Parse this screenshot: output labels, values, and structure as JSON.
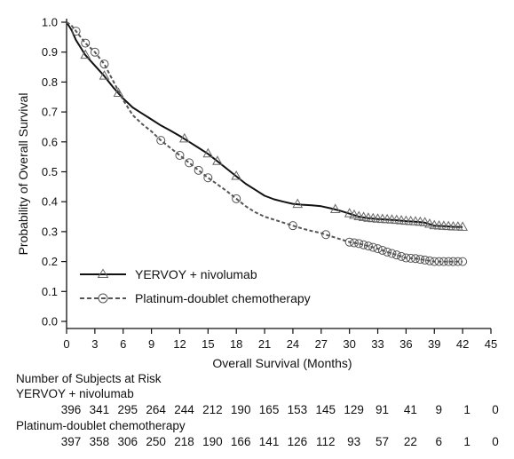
{
  "chart_data": {
    "type": "line",
    "title": "",
    "xlabel": "Overall Survival (Months)",
    "ylabel": "Probability of Overall Survival",
    "xlim": [
      0,
      45
    ],
    "ylim": [
      0.0,
      1.0
    ],
    "x_ticks": [
      "0",
      "3",
      "6",
      "9",
      "12",
      "15",
      "18",
      "21",
      "24",
      "27",
      "30",
      "33",
      "36",
      "39",
      "42",
      "45"
    ],
    "y_ticks": [
      "0.0",
      "0.1",
      "0.2",
      "0.3",
      "0.4",
      "0.5",
      "0.6",
      "0.7",
      "0.8",
      "0.9",
      "1.0"
    ],
    "grid": false,
    "legend_position": "bottom-left",
    "series": [
      {
        "name": "YERVOY + nivolumab",
        "line_style": "solid",
        "marker": "triangle",
        "color": "#111111",
        "x": [
          0,
          0.5,
          1,
          1.5,
          2,
          3,
          4,
          5,
          6,
          7,
          8,
          9,
          10,
          11,
          12,
          13,
          14,
          15,
          16,
          17,
          18,
          19,
          20,
          21,
          22,
          23,
          24,
          25,
          26,
          27,
          28,
          29,
          30,
          31,
          32,
          33,
          34,
          35,
          36,
          37,
          38,
          39,
          40,
          41,
          42
        ],
        "y": [
          1.0,
          0.975,
          0.94,
          0.915,
          0.89,
          0.855,
          0.82,
          0.78,
          0.745,
          0.715,
          0.695,
          0.675,
          0.655,
          0.638,
          0.62,
          0.6,
          0.58,
          0.56,
          0.535,
          0.51,
          0.485,
          0.46,
          0.44,
          0.42,
          0.408,
          0.4,
          0.393,
          0.39,
          0.388,
          0.385,
          0.378,
          0.37,
          0.36,
          0.35,
          0.345,
          0.342,
          0.34,
          0.338,
          0.335,
          0.333,
          0.33,
          0.32,
          0.318,
          0.316,
          0.315
        ],
        "markers_x": [
          2,
          4,
          5.5,
          12.5,
          15,
          16,
          18,
          24.5,
          28.5,
          30,
          30.5,
          31,
          31.5,
          32,
          32.5,
          33,
          33.5,
          34,
          34.5,
          35,
          35.5,
          36,
          36.5,
          37,
          37.5,
          38,
          38.5,
          39,
          39.5,
          40,
          40.5,
          41,
          41.5,
          42
        ]
      },
      {
        "name": "Platinum-doublet chemotherapy",
        "line_style": "dashed",
        "marker": "circle",
        "color": "#555555",
        "x": [
          0,
          0.5,
          1,
          2,
          3,
          4,
          5,
          6,
          7,
          8,
          9,
          10,
          11,
          12,
          13,
          14,
          15,
          16,
          17,
          18,
          19,
          20,
          21,
          22,
          23,
          24,
          25,
          26,
          27,
          28,
          29,
          30,
          31,
          32,
          33,
          34,
          35,
          36,
          37,
          38,
          39,
          40,
          41,
          42
        ],
        "y": [
          1.0,
          0.99,
          0.97,
          0.93,
          0.9,
          0.86,
          0.8,
          0.74,
          0.69,
          0.66,
          0.635,
          0.605,
          0.58,
          0.555,
          0.53,
          0.505,
          0.48,
          0.458,
          0.435,
          0.41,
          0.385,
          0.365,
          0.35,
          0.34,
          0.33,
          0.32,
          0.31,
          0.302,
          0.295,
          0.285,
          0.275,
          0.265,
          0.26,
          0.252,
          0.243,
          0.232,
          0.222,
          0.212,
          0.21,
          0.205,
          0.2,
          0.2,
          0.2,
          0.2
        ],
        "markers_x": [
          1,
          2,
          3,
          4,
          10,
          12,
          13,
          14,
          15,
          18,
          24,
          27.5,
          30,
          30.5,
          31,
          31.5,
          32,
          32.5,
          33,
          33.5,
          34,
          34.5,
          35,
          35.5,
          36,
          36.5,
          37,
          37.5,
          38,
          38.5,
          39,
          39.5,
          40,
          40.5,
          41,
          41.5,
          42
        ]
      }
    ],
    "risk_table": {
      "title": "Number of Subjects at Risk",
      "rows": [
        {
          "name": "YERVOY + nivolumab",
          "values": [
            "396",
            "341",
            "295",
            "264",
            "244",
            "212",
            "190",
            "165",
            "153",
            "145",
            "129",
            "91",
            "41",
            "9",
            "1",
            "0"
          ]
        },
        {
          "name": "Platinum-doublet chemotherapy",
          "values": [
            "397",
            "358",
            "306",
            "250",
            "218",
            "190",
            "166",
            "141",
            "126",
            "112",
            "93",
            "57",
            "22",
            "6",
            "1",
            "0"
          ]
        }
      ]
    }
  }
}
